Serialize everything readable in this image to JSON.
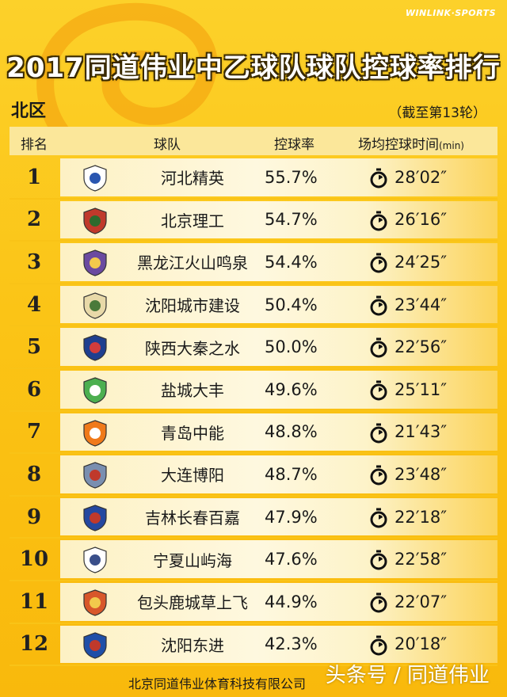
{
  "brand": "WINLINK·SPORTS",
  "title": "2017同道伟业中乙球队球队控球率排行",
  "region": "北区",
  "as_of": "（截至第13轮）",
  "headers": {
    "rank": "排名",
    "team": "球队",
    "possession": "控球率",
    "time": "场均控球时间",
    "time_unit": "(min)"
  },
  "colors": {
    "background": "#fbc416",
    "row_band": "#fef8df",
    "header_band": "#fbe79a",
    "text": "#1a1a1a"
  },
  "teams": [
    {
      "rank": "1",
      "name": "河北精英",
      "possession": "55.7%",
      "time": "28′02″",
      "logo": "hebei-jingying-logo"
    },
    {
      "rank": "2",
      "name": "北京理工",
      "possession": "54.7%",
      "time": "26′16″",
      "logo": "beijing-ligong-logo"
    },
    {
      "rank": "3",
      "name": "黑龙江火山鸣泉",
      "possession": "54.4%",
      "time": "24′25″",
      "logo": "heilongjiang-logo"
    },
    {
      "rank": "4",
      "name": "沈阳城市建设",
      "possession": "50.4%",
      "time": "23′44″",
      "logo": "shenyang-chengshi-logo"
    },
    {
      "rank": "5",
      "name": "陕西大秦之水",
      "possession": "50.0%",
      "time": "22′56″",
      "logo": "shaanxi-daqin-logo"
    },
    {
      "rank": "6",
      "name": "盐城大丰",
      "possession": "49.6%",
      "time": "25′11″",
      "logo": "yancheng-dafeng-logo"
    },
    {
      "rank": "7",
      "name": "青岛中能",
      "possession": "48.8%",
      "time": "21′43″",
      "logo": "qingdao-zhongneng-logo"
    },
    {
      "rank": "8",
      "name": "大连博阳",
      "possession": "48.7%",
      "time": "23′48″",
      "logo": "dalian-boyang-logo"
    },
    {
      "rank": "9",
      "name": "吉林长春百嘉",
      "possession": "47.9%",
      "time": "22′18″",
      "logo": "jilin-baijia-logo"
    },
    {
      "rank": "10",
      "name": "宁夏山屿海",
      "possession": "47.6%",
      "time": "22′58″",
      "logo": "ningxia-logo"
    },
    {
      "rank": "11",
      "name": "包头鹿城草上飞",
      "possession": "44.9%",
      "time": "22′07″",
      "logo": "baotou-logo"
    },
    {
      "rank": "12",
      "name": "沈阳东进",
      "possession": "42.3%",
      "time": "20′18″",
      "logo": "shenyang-dongjin-logo"
    }
  ],
  "footer": "北京同道伟业体育科技有限公司",
  "watermark": "头条号 / 同道伟业"
}
